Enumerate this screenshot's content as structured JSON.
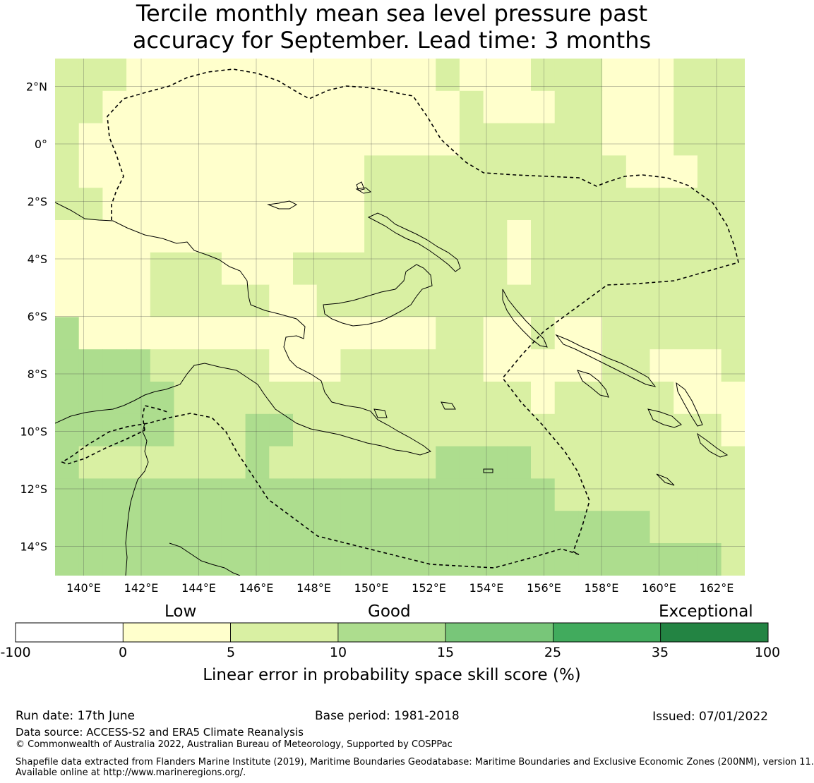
{
  "title": {
    "line1": "Tercile monthly mean sea level pressure past",
    "line2": "accuracy for September. Lead time: 3 months"
  },
  "map": {
    "lon_labels": [
      "140°E",
      "142°E",
      "144°E",
      "146°E",
      "148°E",
      "150°E",
      "152°E",
      "154°E",
      "156°E",
      "158°E",
      "160°E",
      "162°E"
    ],
    "lat_labels": [
      "2°N",
      "0°",
      "2°S",
      "4°S",
      "6°S",
      "8°S",
      "10°S",
      "12°S",
      "14°S"
    ],
    "colors": {
      "bin_neg": "#ffffff",
      "bin_0_5": "#ffffcc",
      "bin_5_10": "#d9f0a3",
      "bin_10_15": "#addd8e",
      "bin_15_25": "#78c679",
      "bin_25_35": "#41ab5d",
      "bin_35_100": "#238443"
    }
  },
  "colorbar": {
    "category_labels": {
      "low": "Low",
      "good": "Good",
      "exceptional": "Exceptional"
    },
    "ticks": [
      "-100",
      "0",
      "5",
      "10",
      "15",
      "25",
      "35",
      "100"
    ],
    "title": "Linear error in probability space skill score (%)"
  },
  "footer": {
    "run_date": "Run date: 17th June",
    "base_period": "Base period: 1981-2018",
    "issued": "Issued: 07/01/2022",
    "data_source": "Data source: ACCESS-S2 and ERA5 Climate Reanalysis",
    "copyright": "© Commonwealth of Australia 2022, Australian Bureau of Meteorology, Supported by COSPPac",
    "shapefile_line1": "Shapefile data extracted from Flanders Marine Institute (2019), Maritime Boundaries Geodatabase: Maritime Boundaries and Exclusive Economic Zones (200NM), version 11.",
    "shapefile_line2": "Available online at http://www.marineregions.org/."
  }
}
